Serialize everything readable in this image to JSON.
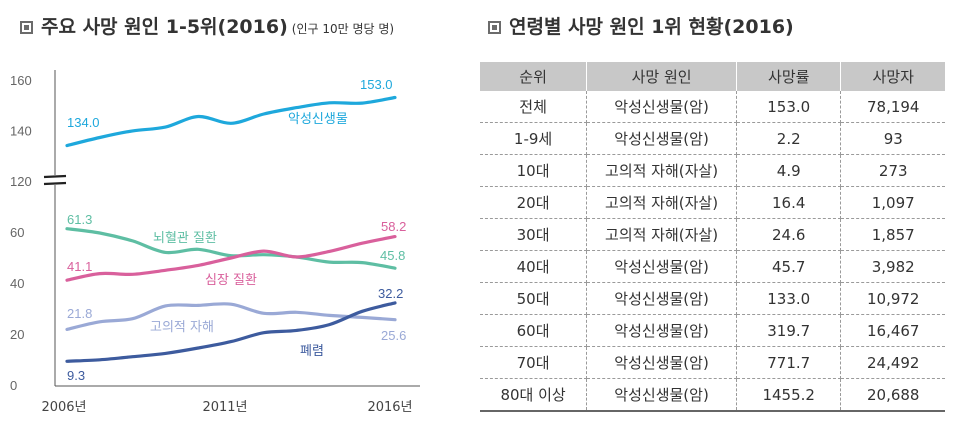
{
  "left_panel": {
    "title": "주요 사망 원인 1-5위(2016)",
    "subtitle": "(인구 10만 명당 명)"
  },
  "right_panel": {
    "title": "연령별 사망 원인 1위 현황(2016)"
  },
  "chart_data": {
    "type": "line",
    "title": "주요 사망 원인 1-5위(2016)",
    "subtitle": "(인구 10만 명당 명)",
    "x_ticks": [
      "2006년",
      "2011년",
      "2016년"
    ],
    "y_ticks": [
      "160",
      "140",
      "120",
      "60",
      "40",
      "20",
      "0"
    ],
    "axis_break_at": 120,
    "colors": {
      "cancer": "#1ea8dc",
      "cerebro": "#5ebea3",
      "heart": "#d9609c",
      "suicide": "#9aa9d6",
      "pneumonia": "#3d5b9e"
    },
    "series": [
      {
        "key": "cancer",
        "name": "악성신생물",
        "start_label": "134.0",
        "end_label": "153.0",
        "values": [
          134.0,
          137.2,
          139.8,
          141.3,
          145.5,
          142.8,
          146.5,
          149.0,
          150.9,
          150.8,
          153.0
        ]
      },
      {
        "key": "cerebro",
        "name": "뇌혈관 질환",
        "start_label": "61.3",
        "end_label": "45.8",
        "values": [
          61.3,
          59.6,
          56.5,
          52.0,
          53.2,
          50.7,
          51.1,
          50.2,
          48.2,
          48.0,
          45.8
        ]
      },
      {
        "key": "heart",
        "name": "심장 질환",
        "start_label": "41.1",
        "end_label": "58.2",
        "values": [
          41.1,
          43.7,
          43.4,
          45.0,
          46.9,
          49.8,
          52.5,
          50.2,
          52.4,
          55.6,
          58.2
        ]
      },
      {
        "key": "suicide",
        "name": "고의적 자해",
        "start_label": "21.8",
        "end_label": "25.6",
        "values": [
          21.8,
          24.8,
          26.0,
          31.0,
          31.2,
          31.7,
          28.1,
          28.5,
          27.3,
          26.5,
          25.6
        ]
      },
      {
        "key": "pneumonia",
        "name": "폐렴",
        "start_label": "9.3",
        "end_label": "32.2",
        "values": [
          9.3,
          9.9,
          11.1,
          12.4,
          14.5,
          17.0,
          20.5,
          21.4,
          23.7,
          28.9,
          32.2
        ]
      }
    ]
  },
  "table": {
    "headers": [
      "순위",
      "사망 원인",
      "사망률",
      "사망자"
    ],
    "rows": [
      [
        "전체",
        "악성신생물(암)",
        "153.0",
        "78,194"
      ],
      [
        "1-9세",
        "악성신생물(암)",
        "2.2",
        "93"
      ],
      [
        "10대",
        "고의적 자해(자살)",
        "4.9",
        "273"
      ],
      [
        "20대",
        "고의적 자해(자살)",
        "16.4",
        "1,097"
      ],
      [
        "30대",
        "고의적 자해(자살)",
        "24.6",
        "1,857"
      ],
      [
        "40대",
        "악성신생물(암)",
        "45.7",
        "3,982"
      ],
      [
        "50대",
        "악성신생물(암)",
        "133.0",
        "10,972"
      ],
      [
        "60대",
        "악성신생물(암)",
        "319.7",
        "16,467"
      ],
      [
        "70대",
        "악성신생물(암)",
        "771.7",
        "24,492"
      ],
      [
        "80대 이상",
        "악성신생물(암)",
        "1455.2",
        "20,688"
      ]
    ]
  }
}
